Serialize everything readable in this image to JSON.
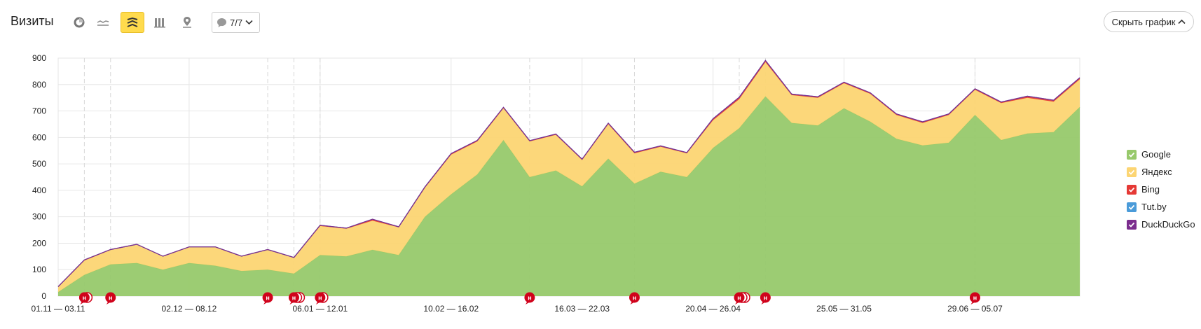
{
  "header": {
    "title": "Визиты",
    "notes_count": "7/7",
    "hide_button": "Скрыть график"
  },
  "toolbar_icons": [
    "pie-chart-icon",
    "line-chart-icon",
    "stacked-area-icon",
    "column-chart-icon",
    "map-icon"
  ],
  "colors": {
    "google": "#97c96b",
    "yandex": "#fcd573",
    "bing": "#e53935",
    "tutby": "#4a9bd9",
    "duckduckgo": "#7b2d8e",
    "grid": "#e6e6e6",
    "note_marker": "#d0021b"
  },
  "chart_data": {
    "type": "area",
    "stacked": true,
    "ylim": [
      0,
      900
    ],
    "yticks": [
      0,
      100,
      200,
      300,
      400,
      500,
      600,
      700,
      800,
      900
    ],
    "xlabels": [
      {
        "index": 0,
        "label": "01.11 — 03.11"
      },
      {
        "index": 5,
        "label": "02.12 — 08.12"
      },
      {
        "index": 10,
        "label": "06.01 — 12.01"
      },
      {
        "index": 15,
        "label": "10.02 — 16.02"
      },
      {
        "index": 20,
        "label": "16.03 — 22.03"
      },
      {
        "index": 25,
        "label": "20.04 — 26.04"
      },
      {
        "index": 30,
        "label": "25.05 — 31.05"
      },
      {
        "index": 35,
        "label": "29.06 — 05.07"
      }
    ],
    "series": [
      {
        "name": "Google",
        "color": "#97c96b",
        "values": [
          15,
          80,
          120,
          125,
          100,
          125,
          115,
          95,
          100,
          85,
          155,
          150,
          175,
          155,
          300,
          385,
          460,
          590,
          450,
          475,
          415,
          520,
          425,
          470,
          450,
          560,
          635,
          755,
          655,
          645,
          710,
          660,
          595,
          570,
          580,
          685,
          590,
          615,
          620,
          715
        ]
      },
      {
        "name": "Яндекс",
        "color": "#fcd573",
        "values": [
          20,
          55,
          55,
          70,
          50,
          60,
          70,
          55,
          75,
          60,
          110,
          105,
          110,
          105,
          110,
          150,
          125,
          120,
          135,
          135,
          100,
          130,
          115,
          95,
          90,
          105,
          110,
          130,
          105,
          105,
          95,
          105,
          90,
          85,
          105,
          95,
          140,
          135,
          115,
          105
        ]
      },
      {
        "name": "Bing",
        "color": "#e53935",
        "values": [
          1,
          1,
          1,
          1,
          1,
          1,
          1,
          1,
          1,
          1,
          2,
          2,
          5,
          2,
          2,
          3,
          3,
          3,
          2,
          2,
          2,
          3,
          3,
          2,
          2,
          5,
          6,
          5,
          3,
          3,
          3,
          3,
          3,
          3,
          3,
          3,
          3,
          5,
          5,
          5
        ]
      },
      {
        "name": "Tut.by",
        "color": "#4a9bd9",
        "values": [
          0,
          1,
          0,
          0,
          0,
          0,
          0,
          0,
          0,
          0,
          1,
          0,
          1,
          0,
          1,
          1,
          1,
          1,
          1,
          1,
          1,
          1,
          1,
          1,
          1,
          1,
          1,
          1,
          1,
          1,
          1,
          1,
          1,
          1,
          1,
          1,
          1,
          1,
          1,
          1
        ]
      },
      {
        "name": "DuckDuckGo",
        "color": "#7b2d8e",
        "values": [
          0,
          0,
          0,
          0,
          0,
          0,
          0,
          0,
          0,
          0,
          0,
          0,
          0,
          0,
          0,
          0,
          0,
          0,
          0,
          0,
          0,
          0,
          0,
          0,
          0,
          0,
          0,
          0,
          0,
          0,
          0,
          0,
          0,
          0,
          0,
          0,
          0,
          0,
          0,
          0
        ]
      }
    ],
    "note_markers": [
      {
        "x": 1,
        "count": 2
      },
      {
        "x": 2,
        "count": 1
      },
      {
        "x": 8,
        "count": 1
      },
      {
        "x": 9,
        "count": 3
      },
      {
        "x": 10,
        "count": 2
      },
      {
        "x": 18,
        "count": 1
      },
      {
        "x": 22,
        "count": 1
      },
      {
        "x": 26,
        "count": 3
      },
      {
        "x": 27,
        "count": 1
      },
      {
        "x": 35,
        "count": 1
      }
    ],
    "note_label": "н",
    "legend": [
      "Google",
      "Яндекс",
      "Bing",
      "Tut.by",
      "DuckDuckGo"
    ],
    "legend_position": "right",
    "grid": true
  }
}
